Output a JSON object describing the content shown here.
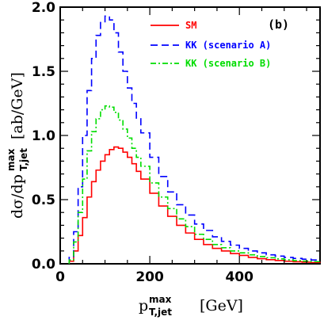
{
  "chart_data": {
    "type": "line",
    "step": true,
    "panel_label": "(b)",
    "xlabel": {
      "main": "p",
      "sup": "max",
      "sub": "T,jet",
      "unit": "[GeV]"
    },
    "ylabel": {
      "main": "dσ/dp",
      "sup": "max",
      "sub": "T,jet",
      "unit": "[ab/GeV]"
    },
    "xlim": [
      0,
      580
    ],
    "ylim": [
      0,
      2.0
    ],
    "xticks": [
      0,
      200,
      400
    ],
    "xtick_labels": [
      "0",
      "200",
      "400"
    ],
    "yticks": [
      0,
      0.5,
      1.0,
      1.5,
      2.0
    ],
    "ytick_labels": [
      "0.0",
      "0.5",
      "1.0",
      "1.5",
      "2.0"
    ],
    "legend_position": "top-right",
    "series": [
      {
        "name": "SM",
        "color": "#ff0000",
        "dash": "solid",
        "points": [
          [
            20,
            0.02
          ],
          [
            30,
            0.1
          ],
          [
            40,
            0.22
          ],
          [
            50,
            0.36
          ],
          [
            60,
            0.52
          ],
          [
            70,
            0.64
          ],
          [
            80,
            0.73
          ],
          [
            90,
            0.8
          ],
          [
            100,
            0.85
          ],
          [
            110,
            0.89
          ],
          [
            120,
            0.91
          ],
          [
            130,
            0.9
          ],
          [
            140,
            0.87
          ],
          [
            150,
            0.83
          ],
          [
            160,
            0.78
          ],
          [
            170,
            0.72
          ],
          [
            180,
            0.66
          ],
          [
            200,
            0.55
          ],
          [
            220,
            0.45
          ],
          [
            240,
            0.37
          ],
          [
            260,
            0.3
          ],
          [
            280,
            0.24
          ],
          [
            300,
            0.19
          ],
          [
            320,
            0.15
          ],
          [
            340,
            0.12
          ],
          [
            360,
            0.1
          ],
          [
            380,
            0.08
          ],
          [
            400,
            0.065
          ],
          [
            420,
            0.05
          ],
          [
            440,
            0.04
          ],
          [
            460,
            0.032
          ],
          [
            480,
            0.026
          ],
          [
            500,
            0.02
          ],
          [
            520,
            0.016
          ],
          [
            540,
            0.013
          ],
          [
            560,
            0.01
          ],
          [
            580,
            0.008
          ]
        ]
      },
      {
        "name": "KK (scenario A)",
        "color": "#0000ff",
        "dash": "long-dash",
        "points": [
          [
            20,
            0.05
          ],
          [
            30,
            0.25
          ],
          [
            40,
            0.6
          ],
          [
            50,
            1.0
          ],
          [
            60,
            1.35
          ],
          [
            70,
            1.6
          ],
          [
            80,
            1.78
          ],
          [
            90,
            1.88
          ],
          [
            100,
            1.93
          ],
          [
            110,
            1.9
          ],
          [
            120,
            1.8
          ],
          [
            130,
            1.65
          ],
          [
            140,
            1.5
          ],
          [
            150,
            1.37
          ],
          [
            160,
            1.25
          ],
          [
            170,
            1.13
          ],
          [
            180,
            1.02
          ],
          [
            200,
            0.83
          ],
          [
            220,
            0.68
          ],
          [
            240,
            0.56
          ],
          [
            260,
            0.46
          ],
          [
            280,
            0.38
          ],
          [
            300,
            0.31
          ],
          [
            320,
            0.26
          ],
          [
            340,
            0.21
          ],
          [
            360,
            0.175
          ],
          [
            380,
            0.145
          ],
          [
            400,
            0.12
          ],
          [
            420,
            0.1
          ],
          [
            440,
            0.085
          ],
          [
            460,
            0.07
          ],
          [
            480,
            0.06
          ],
          [
            500,
            0.05
          ],
          [
            520,
            0.042
          ],
          [
            540,
            0.036
          ],
          [
            560,
            0.03
          ],
          [
            580,
            0.025
          ]
        ]
      },
      {
        "name": "KK (scenario B)",
        "color": "#00dd00",
        "dash": "dash-dot",
        "points": [
          [
            20,
            0.03
          ],
          [
            30,
            0.17
          ],
          [
            40,
            0.4
          ],
          [
            50,
            0.66
          ],
          [
            60,
            0.88
          ],
          [
            70,
            1.03
          ],
          [
            80,
            1.13
          ],
          [
            90,
            1.2
          ],
          [
            100,
            1.23
          ],
          [
            110,
            1.22
          ],
          [
            120,
            1.18
          ],
          [
            130,
            1.12
          ],
          [
            140,
            1.05
          ],
          [
            150,
            0.98
          ],
          [
            160,
            0.9
          ],
          [
            170,
            0.83
          ],
          [
            180,
            0.76
          ],
          [
            200,
            0.63
          ],
          [
            220,
            0.52
          ],
          [
            240,
            0.43
          ],
          [
            260,
            0.35
          ],
          [
            280,
            0.29
          ],
          [
            300,
            0.23
          ],
          [
            320,
            0.19
          ],
          [
            340,
            0.15
          ],
          [
            360,
            0.125
          ],
          [
            380,
            0.1
          ],
          [
            400,
            0.085
          ],
          [
            420,
            0.07
          ],
          [
            440,
            0.057
          ],
          [
            460,
            0.047
          ],
          [
            480,
            0.038
          ],
          [
            500,
            0.031
          ],
          [
            520,
            0.025
          ],
          [
            540,
            0.021
          ],
          [
            560,
            0.017
          ],
          [
            580,
            0.014
          ]
        ]
      }
    ]
  }
}
